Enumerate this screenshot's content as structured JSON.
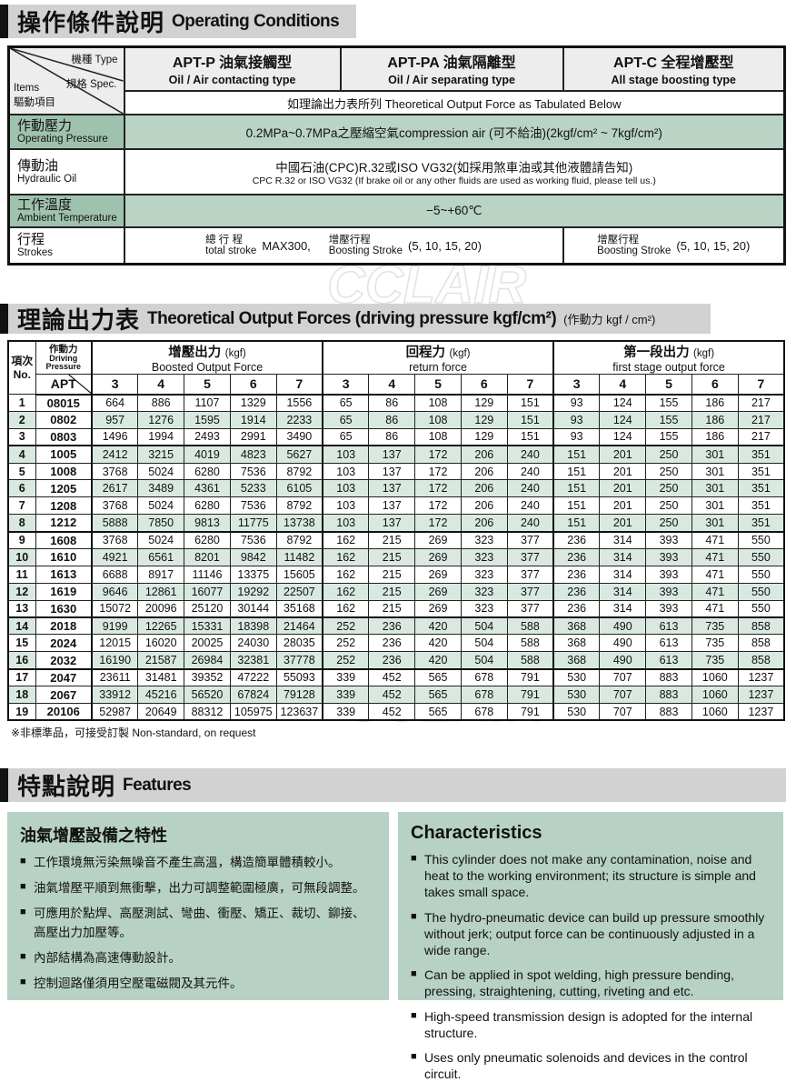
{
  "watermark": {
    "text": "CCLAIR"
  },
  "operating": {
    "title_zh": "操作條件說明",
    "title_en": "Operating Conditions",
    "corner": {
      "type_label": "機種 Type",
      "spec_label": "規格 Spec.",
      "items_label": "Items",
      "items_zh": "驅動項目"
    },
    "types": [
      {
        "model_zh": "APT-P 油氣接觸型",
        "name_en": "Oil / Air contacting type"
      },
      {
        "model_zh": "APT-PA 油氣隔離型",
        "name_en": "Oil / Air separating type"
      },
      {
        "model_zh": "APT-C 全程增壓型",
        "name_en": "All stage boosting type"
      }
    ],
    "spec_row": "如理論出力表所列  Theoretical Output Force as Tabulated Below",
    "pressure": {
      "label_zh": "作動壓力",
      "label_en": "Operating Pressure",
      "value": "0.2MPa~0.7MPa之壓縮空氣compression air (可不給油)(2kgf/cm² ~ 7kgf/cm²)"
    },
    "oil": {
      "label_zh": "傳動油",
      "label_en": "Hydraulic Oil",
      "value_zh": "中國石油(CPC)R.32或ISO VG32(如採用煞車油或其他液體請告知)",
      "value_en": "CPC R.32 or ISO VG32 (If brake oil or any other fluids are used as working fluid, please tell us.)"
    },
    "temperature": {
      "label_zh": "工作溫度",
      "label_en": "Ambient Temperature",
      "value": "−5~+60℃"
    },
    "strokes": {
      "label_zh": "行程",
      "label_en": "Strokes",
      "total_zh": "總 行 程",
      "total_en": "total stroke",
      "total_value": "MAX300,",
      "boost_zh": "增壓行程",
      "boost_en": "Boosting Stroke",
      "boost_value": "(5, 10, 15, 20)",
      "boost2_zh": "增壓行程",
      "boost2_en": "Boosting Stroke",
      "boost2_value": "(5, 10, 15, 20)"
    }
  },
  "forces": {
    "title_zh": "理論出力表",
    "title_en": "Theoretical Output Forces (driving pressure kgf/cm²)",
    "title_note": "(作動力 kgf / cm²)",
    "header": {
      "no_zh": "項次",
      "no_en": "No.",
      "dp_zh": "作動力",
      "dp_en1": "Driving",
      "dp_en2": "Pressure",
      "apt": "APT",
      "groups": [
        {
          "zh": "增壓出力",
          "unit": "(kgf)",
          "en": "Boosted Output Force"
        },
        {
          "zh": "回程力",
          "unit": "(kgf)",
          "en": "return force"
        },
        {
          "zh": "第一段出力",
          "unit": "(kgf)",
          "en": "first stage output force"
        }
      ],
      "pressures": [
        "3",
        "4",
        "5",
        "6",
        "7"
      ]
    },
    "group_start_indices": [
      3,
      8,
      13,
      16
    ],
    "rows": [
      {
        "no": "1",
        "apt": "08015",
        "boost": [
          664,
          886,
          1107,
          1329,
          1556
        ],
        "return_force": [
          65,
          86,
          108,
          129,
          151
        ],
        "first_stage": [
          93,
          124,
          155,
          186,
          217
        ]
      },
      {
        "no": "2",
        "apt": "0802",
        "boost": [
          957,
          1276,
          1595,
          1914,
          2233
        ],
        "return_force": [
          65,
          86,
          108,
          129,
          151
        ],
        "first_stage": [
          93,
          124,
          155,
          186,
          217
        ]
      },
      {
        "no": "3",
        "apt": "0803",
        "boost": [
          1496,
          1994,
          2493,
          2991,
          3490
        ],
        "return_force": [
          65,
          86,
          108,
          129,
          151
        ],
        "first_stage": [
          93,
          124,
          155,
          186,
          217
        ]
      },
      {
        "no": "4",
        "apt": "1005",
        "boost": [
          2412,
          3215,
          4019,
          4823,
          5627
        ],
        "return_force": [
          103,
          137,
          172,
          206,
          240
        ],
        "first_stage": [
          151,
          201,
          250,
          301,
          351
        ]
      },
      {
        "no": "5",
        "apt": "1008",
        "boost": [
          3768,
          5024,
          6280,
          7536,
          8792
        ],
        "return_force": [
          103,
          137,
          172,
          206,
          240
        ],
        "first_stage": [
          151,
          201,
          250,
          301,
          351
        ]
      },
      {
        "no": "6",
        "apt": "1205",
        "boost": [
          2617,
          3489,
          4361,
          5233,
          6105
        ],
        "return_force": [
          103,
          137,
          172,
          206,
          240
        ],
        "first_stage": [
          151,
          201,
          250,
          301,
          351
        ]
      },
      {
        "no": "7",
        "apt": "1208",
        "boost": [
          3768,
          5024,
          6280,
          7536,
          8792
        ],
        "return_force": [
          103,
          137,
          172,
          206,
          240
        ],
        "first_stage": [
          151,
          201,
          250,
          301,
          351
        ]
      },
      {
        "no": "8",
        "apt": "1212",
        "boost": [
          5888,
          7850,
          9813,
          11775,
          13738
        ],
        "return_force": [
          103,
          137,
          172,
          206,
          240
        ],
        "first_stage": [
          151,
          201,
          250,
          301,
          351
        ]
      },
      {
        "no": "9",
        "apt": "1608",
        "boost": [
          3768,
          5024,
          6280,
          7536,
          8792
        ],
        "return_force": [
          162,
          215,
          269,
          323,
          377
        ],
        "first_stage": [
          236,
          314,
          393,
          471,
          550
        ]
      },
      {
        "no": "10",
        "apt": "1610",
        "boost": [
          4921,
          6561,
          8201,
          9842,
          11482
        ],
        "return_force": [
          162,
          215,
          269,
          323,
          377
        ],
        "first_stage": [
          236,
          314,
          393,
          471,
          550
        ]
      },
      {
        "no": "11",
        "apt": "1613",
        "boost": [
          6688,
          8917,
          11146,
          13375,
          15605
        ],
        "return_force": [
          162,
          215,
          269,
          323,
          377
        ],
        "first_stage": [
          236,
          314,
          393,
          471,
          550
        ]
      },
      {
        "no": "12",
        "apt": "1619",
        "boost": [
          9646,
          12861,
          16077,
          19292,
          22507
        ],
        "return_force": [
          162,
          215,
          269,
          323,
          377
        ],
        "first_stage": [
          236,
          314,
          393,
          471,
          550
        ]
      },
      {
        "no": "13",
        "apt": "1630",
        "boost": [
          15072,
          20096,
          25120,
          30144,
          35168
        ],
        "return_force": [
          162,
          215,
          269,
          323,
          377
        ],
        "first_stage": [
          236,
          314,
          393,
          471,
          550
        ]
      },
      {
        "no": "14",
        "apt": "2018",
        "boost": [
          9199,
          12265,
          15331,
          18398,
          21464
        ],
        "return_force": [
          252,
          236,
          420,
          504,
          588
        ],
        "first_stage": [
          368,
          490,
          613,
          735,
          858
        ]
      },
      {
        "no": "15",
        "apt": "2024",
        "boost": [
          12015,
          16020,
          20025,
          24030,
          28035
        ],
        "return_force": [
          252,
          236,
          420,
          504,
          588
        ],
        "first_stage": [
          368,
          490,
          613,
          735,
          858
        ]
      },
      {
        "no": "16",
        "apt": "2032",
        "boost": [
          16190,
          21587,
          26984,
          32381,
          37778
        ],
        "return_force": [
          252,
          236,
          420,
          504,
          588
        ],
        "first_stage": [
          368,
          490,
          613,
          735,
          858
        ]
      },
      {
        "no": "17",
        "apt": "2047",
        "boost": [
          23611,
          31481,
          39352,
          47222,
          55093
        ],
        "return_force": [
          339,
          452,
          565,
          678,
          791
        ],
        "first_stage": [
          530,
          707,
          883,
          1060,
          1237
        ]
      },
      {
        "no": "18",
        "apt": "2067",
        "boost": [
          33912,
          45216,
          56520,
          67824,
          79128
        ],
        "return_force": [
          339,
          452,
          565,
          678,
          791
        ],
        "first_stage": [
          530,
          707,
          883,
          1060,
          1237
        ]
      },
      {
        "no": "19",
        "apt": "20106",
        "boost": [
          52987,
          20649,
          88312,
          105975,
          123637
        ],
        "return_force": [
          339,
          452,
          565,
          678,
          791
        ],
        "first_stage": [
          530,
          707,
          883,
          1060,
          1237
        ]
      }
    ],
    "note": "※非標準品，可接受訂製   Non-standard, on request"
  },
  "features": {
    "title_zh": "特點說明",
    "title_en": "Features",
    "left": {
      "title": "油氣增壓設備之特性",
      "bullets": [
        "工作環境無污染無噪音不產生高溫，構造簡單體積較小。",
        "油氣增壓平順到無衝擊，出力可調整範圍極廣，可無段調整。",
        "可應用於點焊、高壓測試、彎曲、衝壓、矯正、裁切、鉚接、高壓出力加壓等。",
        "內部結構為高速傳動設計。",
        "控制迴路僅須用空壓電磁閥及其元件。"
      ]
    },
    "right": {
      "title": "Characteristics",
      "bullets": [
        "This cylinder does not make any contamination, noise and heat to the working environment; its structure is simple and takes small space.",
        "The hydro-pneumatic device can build up pressure smoothly without jerk; output force can be continuously adjusted in a wide range.",
        "Can be applied in spot welding, high pressure bending, pressing, straightening, cutting, riveting and etc.",
        "High-speed transmission design is adopted for the internal structure.",
        "Uses only pneumatic solenoids and devices in the control circuit."
      ]
    }
  }
}
